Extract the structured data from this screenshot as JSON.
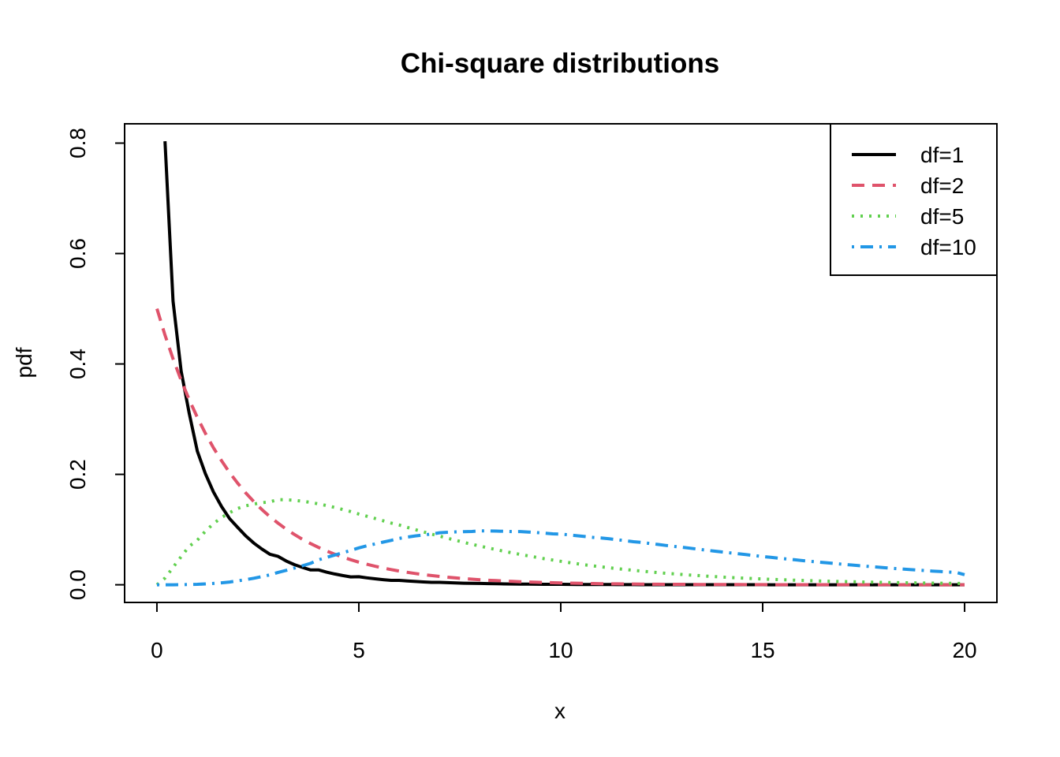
{
  "chart_data": {
    "type": "line",
    "title": "Chi-square distributions",
    "xlabel": "x",
    "ylabel": "pdf",
    "xlim": [
      -0.8,
      20.8
    ],
    "ylim": [
      -0.032,
      0.835
    ],
    "x_ticks": [
      0,
      5,
      10,
      15,
      20
    ],
    "x_tick_labels": [
      "0",
      "5",
      "10",
      "15",
      "20"
    ],
    "y_ticks": [
      0.0,
      0.2,
      0.4,
      0.6,
      0.8
    ],
    "y_tick_labels": [
      "0.0",
      "0.2",
      "0.4",
      "0.6",
      "0.8"
    ],
    "grid": false,
    "legend_position": "top-right",
    "x": [
      0,
      0.2,
      0.4,
      0.6,
      0.8,
      1.0,
      1.2,
      1.4,
      1.6,
      1.8,
      2.0,
      2.2,
      2.4,
      2.6,
      2.8,
      3.0,
      3.2,
      3.4,
      3.6,
      3.8,
      4.0,
      4.2,
      4.4,
      4.6,
      4.8,
      5.0,
      5.2,
      5.4,
      5.6,
      5.8,
      6.0,
      6.2,
      6.4,
      6.6,
      6.8,
      7.0,
      7.2,
      7.4,
      7.6,
      7.8,
      8.0,
      8.2,
      8.4,
      8.6,
      8.8,
      9.0,
      9.2,
      9.4,
      9.6,
      9.8,
      10.0,
      10.2,
      10.4,
      10.6,
      10.8,
      11.0,
      11.2,
      11.4,
      11.6,
      11.8,
      12.0,
      12.2,
      12.4,
      12.6,
      12.8,
      13.0,
      13.2,
      13.4,
      13.6,
      13.8,
      14.0,
      14.2,
      14.4,
      14.6,
      14.8,
      15.0,
      15.2,
      15.4,
      15.6,
      15.8,
      16.0,
      16.2,
      16.4,
      16.6,
      16.8,
      17.0,
      17.2,
      17.4,
      17.6,
      17.8,
      18.0,
      18.2,
      18.4,
      18.6,
      18.8,
      19.0,
      19.2,
      19.4,
      19.6,
      19.8,
      20.0
    ],
    "series": [
      {
        "name": "df=1",
        "color": "#000000",
        "dash": "solid",
        "values": [
          null,
          0.8035,
          0.5137,
          0.3868,
          0.3106,
          0.242,
          0.2012,
          0.1683,
          0.1417,
          0.1199,
          0.1038,
          0.0885,
          0.0754,
          0.0647,
          0.0552,
          0.0514,
          0.0431,
          0.0365,
          0.0316,
          0.027,
          0.027,
          0.0229,
          0.0195,
          0.0167,
          0.0143,
          0.0146,
          0.0126,
          0.0108,
          0.0093,
          0.008,
          0.008,
          0.0069,
          0.006,
          0.0052,
          0.0044,
          0.0044,
          0.0038,
          0.0033,
          0.0029,
          0.0025,
          0.0024,
          0.0021,
          0.0018,
          0.0016,
          0.0014,
          0.0013,
          0.0012,
          0.001,
          0.0009,
          0.0008,
          0.0008,
          0.0007,
          0.0006,
          0.0005,
          0.0005,
          0.0004,
          0.0004,
          0.0003,
          0.0003,
          0.0003,
          0.0002,
          0.0002,
          0.0002,
          0.0002,
          0.0001,
          0.0001,
          0.0001,
          0.0001,
          0.0001,
          0.0001,
          0.0001,
          0.0001,
          0.0001,
          0.0001,
          0.0001,
          0.0001,
          0.0,
          0.0,
          0.0,
          0.0,
          0.0,
          0.0,
          0.0,
          0.0,
          0.0,
          0.0,
          0.0,
          0.0,
          0.0,
          0.0,
          0.0,
          0.0,
          0.0,
          0.0,
          0.0,
          0.0,
          0.0,
          0.0,
          0.0,
          0.0,
          0.0
        ]
      },
      {
        "name": "df=2",
        "color": "#DF536B",
        "dash": "dashed",
        "values": [
          0.5,
          0.4524,
          0.4094,
          0.3704,
          0.3352,
          0.3033,
          0.2744,
          0.2483,
          0.2247,
          0.2033,
          0.1839,
          0.1664,
          0.1506,
          0.1363,
          0.1233,
          0.1116,
          0.1009,
          0.0913,
          0.0826,
          0.0748,
          0.0677,
          0.0612,
          0.0554,
          0.0501,
          0.0454,
          0.041,
          0.0371,
          0.0336,
          0.0304,
          0.0275,
          0.0249,
          0.0225,
          0.0204,
          0.0184,
          0.0167,
          0.0151,
          0.0137,
          0.0124,
          0.0112,
          0.0101,
          0.0092,
          0.0083,
          0.0075,
          0.0068,
          0.0061,
          0.0056,
          0.005,
          0.0045,
          0.0041,
          0.0037,
          0.0034,
          0.003,
          0.0028,
          0.0025,
          0.0023,
          0.002,
          0.0018,
          0.0017,
          0.0015,
          0.0014,
          0.0012,
          0.0011,
          0.001,
          0.0009,
          0.0008,
          0.0008,
          0.0007,
          0.0006,
          0.0006,
          0.0005,
          0.0005,
          0.0004,
          0.0004,
          0.0003,
          0.0003,
          0.0003,
          0.0003,
          0.0002,
          0.0002,
          0.0002,
          0.0002,
          0.0002,
          0.0001,
          0.0001,
          0.0001,
          0.0001,
          0.0001,
          0.0001,
          0.0001,
          0.0001,
          0.0001,
          0.0001,
          0.0001,
          0.0,
          0.0,
          0.0,
          0.0,
          0.0,
          0.0,
          0.0,
          0.0
        ]
      },
      {
        "name": "df=5",
        "color": "#61D04F",
        "dash": "dotted",
        "values": [
          0.0,
          0.0122,
          0.0314,
          0.0511,
          0.0697,
          0.0807,
          0.097,
          0.1107,
          0.1218,
          0.1305,
          0.1383,
          0.1429,
          0.1463,
          0.1487,
          0.1502,
          0.1542,
          0.154,
          0.153,
          0.1514,
          0.1493,
          0.1465,
          0.1435,
          0.1401,
          0.1364,
          0.1326,
          0.1281,
          0.1241,
          0.1201,
          0.116,
          0.1119,
          0.1082,
          0.104,
          0.0999,
          0.0958,
          0.0918,
          0.0881,
          0.0842,
          0.0805,
          0.0768,
          0.0733,
          0.0701,
          0.0668,
          0.0637,
          0.0606,
          0.0577,
          0.055,
          0.0523,
          0.0497,
          0.0472,
          0.0448,
          0.0425,
          0.0403,
          0.0382,
          0.0362,
          0.0343,
          0.0326,
          0.0309,
          0.0292,
          0.0277,
          0.0262,
          0.0248,
          0.0234,
          0.0221,
          0.0209,
          0.0198,
          0.0187,
          0.0176,
          0.0167,
          0.0157,
          0.0148,
          0.014,
          0.0132,
          0.0125,
          0.0118,
          0.0111,
          0.0105,
          0.0099,
          0.0093,
          0.0088,
          0.0083,
          0.0078,
          0.0074,
          0.0069,
          0.0065,
          0.0062,
          0.0058,
          0.0055,
          0.0051,
          0.0048,
          0.0046,
          0.0043,
          0.004,
          0.0038,
          0.0036,
          0.0034,
          0.0032,
          0.003,
          0.0028,
          0.0026,
          0.0025,
          0.0023
        ]
      },
      {
        "name": "df=10",
        "color": "#2297E6",
        "dash": "dotdash",
        "values": [
          0.0,
          0.0,
          0.0,
          0.0002,
          0.0005,
          0.0008,
          0.0015,
          0.0024,
          0.0036,
          0.005,
          0.0071,
          0.0093,
          0.0119,
          0.0148,
          0.018,
          0.0224,
          0.0262,
          0.0302,
          0.0344,
          0.0387,
          0.0451,
          0.0495,
          0.0538,
          0.058,
          0.0622,
          0.0668,
          0.0705,
          0.074,
          0.0773,
          0.0804,
          0.084,
          0.0864,
          0.0885,
          0.0903,
          0.0919,
          0.0942,
          0.0951,
          0.0958,
          0.0963,
          0.0966,
          0.0977,
          0.0976,
          0.0973,
          0.0969,
          0.0963,
          0.0964,
          0.0955,
          0.0945,
          0.0934,
          0.0922,
          0.0918,
          0.0904,
          0.0889,
          0.0874,
          0.0858,
          0.0849,
          0.0832,
          0.0815,
          0.0798,
          0.078,
          0.0767,
          0.0749,
          0.0731,
          0.0713,
          0.0695,
          0.068,
          0.0662,
          0.0644,
          0.0627,
          0.061,
          0.0594,
          0.0577,
          0.0561,
          0.0545,
          0.0529,
          0.0512,
          0.0497,
          0.0482,
          0.0467,
          0.0453,
          0.0437,
          0.0423,
          0.041,
          0.0397,
          0.0384,
          0.037,
          0.0358,
          0.0346,
          0.0334,
          0.0323,
          0.031,
          0.0299,
          0.0289,
          0.0279,
          0.0269,
          0.0258,
          0.0249,
          0.024,
          0.0231,
          0.0223,
          0.0183
        ]
      }
    ]
  }
}
